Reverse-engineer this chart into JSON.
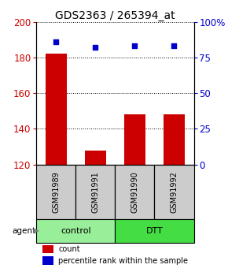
{
  "title": "GDS2363 / 265394_at",
  "samples": [
    "GSM91989",
    "GSM91991",
    "GSM91990",
    "GSM91992"
  ],
  "bar_values": [
    182,
    128,
    148,
    148
  ],
  "percentile_values": [
    86,
    82,
    83,
    83
  ],
  "bar_color": "#cc0000",
  "dot_color": "#0000cc",
  "ylim_left": [
    120,
    200
  ],
  "ylim_right": [
    0,
    100
  ],
  "yticks_left": [
    120,
    140,
    160,
    180,
    200
  ],
  "yticks_right": [
    0,
    25,
    50,
    75,
    100
  ],
  "yticklabels_right": [
    "0",
    "25",
    "50",
    "75",
    "100%"
  ],
  "groups": [
    {
      "label": "control",
      "indices": [
        0,
        1
      ],
      "color": "#99ee99"
    },
    {
      "label": "DTT",
      "indices": [
        2,
        3
      ],
      "color": "#44dd44"
    }
  ],
  "group_row_label": "agent",
  "legend_count_label": "count",
  "legend_percentile_label": "percentile rank within the sample",
  "background_color": "#ffffff",
  "sample_box_color": "#cccccc",
  "title_fontsize": 10,
  "tick_fontsize": 8.5,
  "bar_width": 0.55
}
